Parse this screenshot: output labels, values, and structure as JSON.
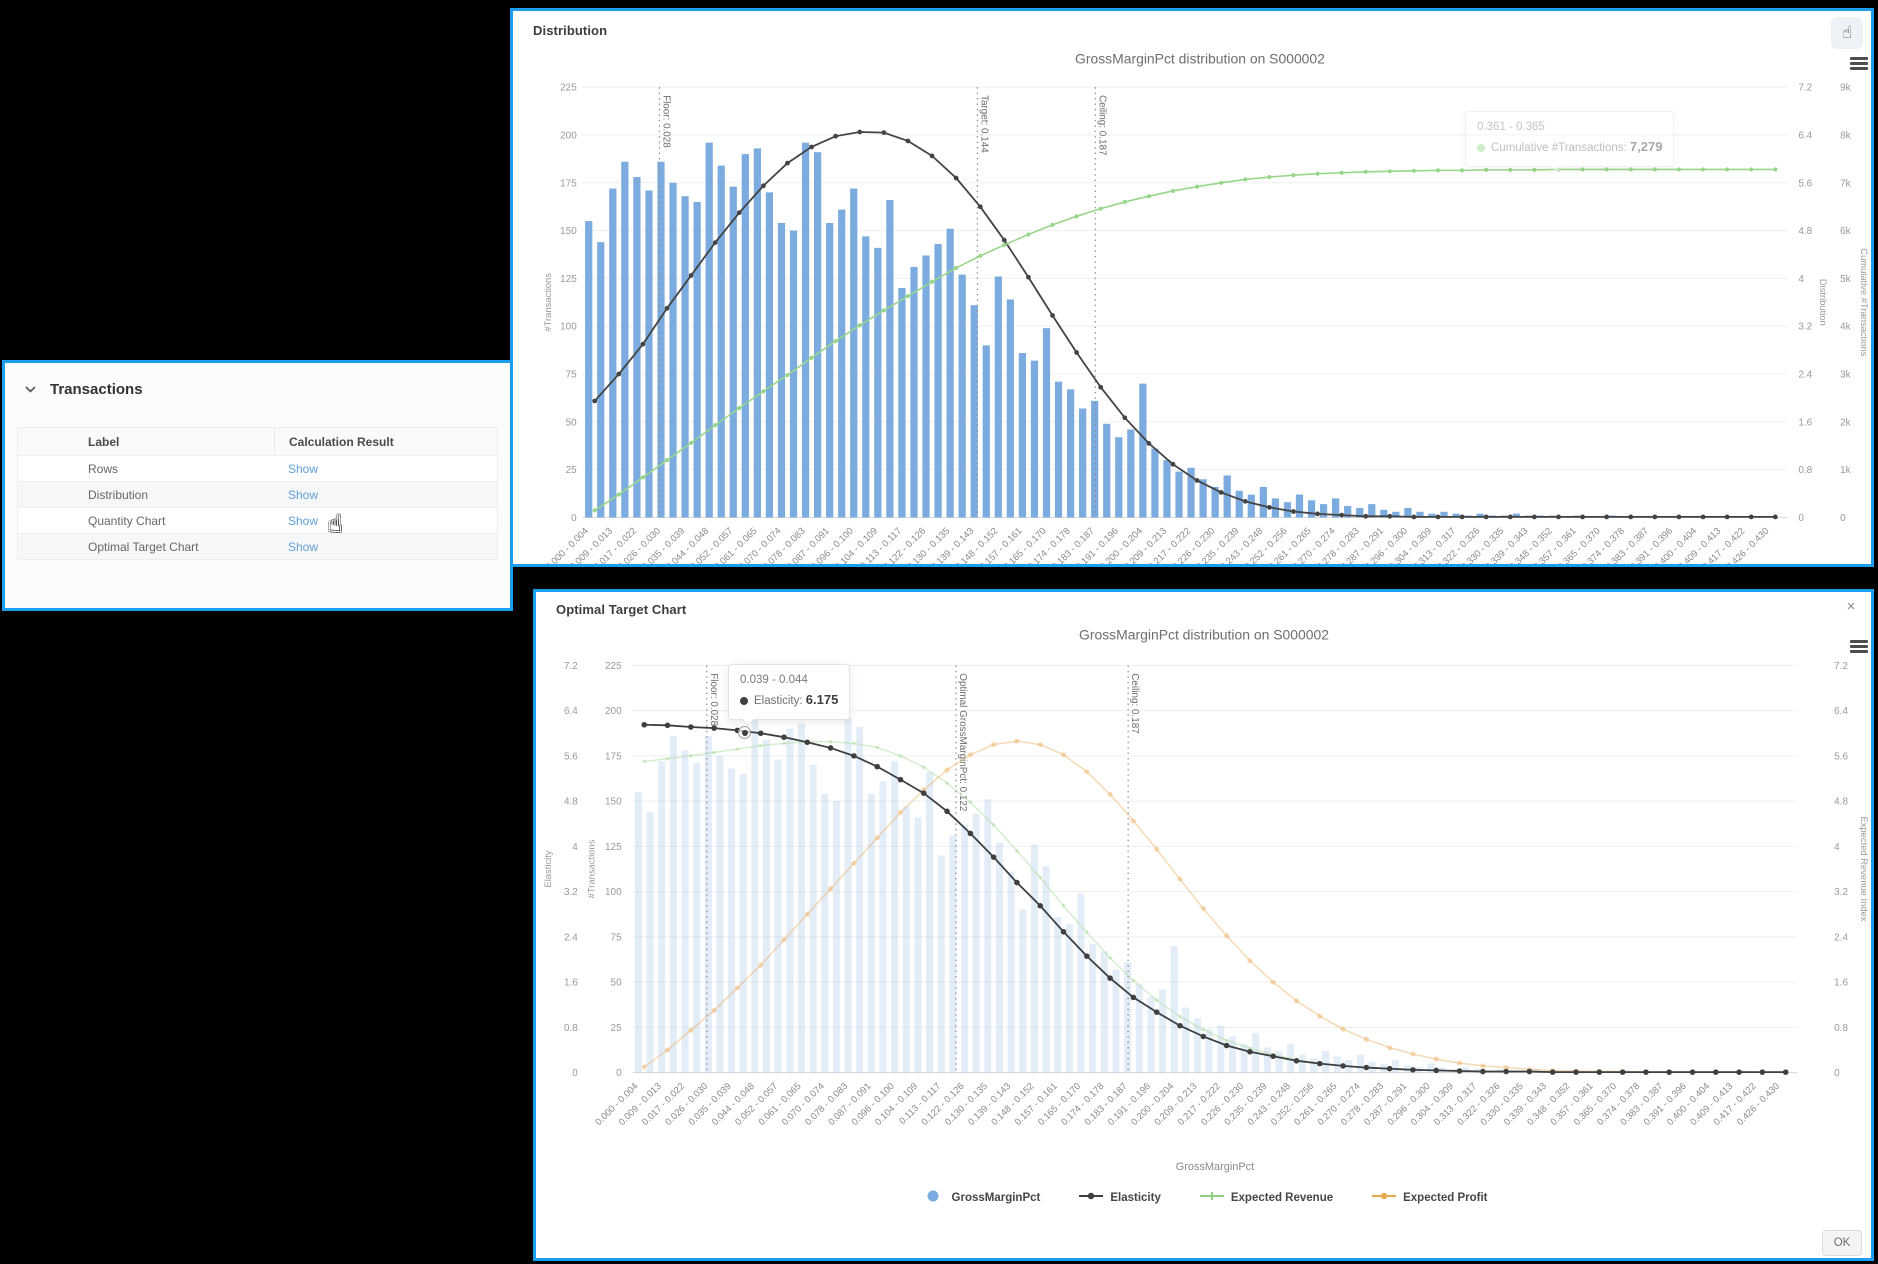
{
  "colors": {
    "panel_border": "#1b9df0",
    "bar_blue": "#7cacdf",
    "line_dark": "#434343",
    "line_green": "#97d689",
    "line_green_faint": "#a8dc9a",
    "line_orange": "#eaaf63",
    "link_blue": "#61a0d7"
  },
  "transactions_panel": {
    "title": "Transactions",
    "table": {
      "headers": [
        "Label",
        "Calculation Result"
      ],
      "rows": [
        {
          "label": "Rows",
          "action": "Show"
        },
        {
          "label": "Distribution",
          "action": "Show"
        },
        {
          "label": "Quantity Chart",
          "action": "Show"
        },
        {
          "label": "Optimal Target Chart",
          "action": "Show"
        }
      ]
    }
  },
  "distribution_panel": {
    "title": "Distribution",
    "tooltip": {
      "range": "0.361 - 0.365",
      "series": "Cumulative #Transactions",
      "value": "7,279"
    }
  },
  "optimal_panel": {
    "title": "Optimal Target Chart",
    "tooltip": {
      "range": "0.039 - 0.044",
      "series": "Elasticity",
      "value": "6.175"
    },
    "ok_label": "OK",
    "legend": [
      {
        "label": "GrossMarginPct",
        "marker": "dot",
        "color": "#7cacdf"
      },
      {
        "label": "Elasticity",
        "marker": "line-dot",
        "color": "#3f3f3f"
      },
      {
        "label": "Expected Revenue",
        "marker": "line-plus",
        "color": "#8fd080"
      },
      {
        "label": "Expected Profit",
        "marker": "line-dot",
        "color": "#e8a84c"
      }
    ]
  },
  "chart_data": [
    {
      "type": "bar",
      "title": "GrossMarginPct distribution on S000002",
      "x_bins": 100,
      "x_max": 0.4395,
      "categories": [
        "0.000 - 0.004",
        "0.009 - 0.013",
        "0.017 - 0.022",
        "0.026 - 0.030",
        "0.035 - 0.039",
        "0.044 - 0.048",
        "0.052 - 0.057",
        "0.061 - 0.065",
        "0.070 - 0.074",
        "0.078 - 0.083",
        "0.087 - 0.091",
        "0.096 - 0.100",
        "0.104 - 0.109",
        "0.113 - 0.117",
        "0.122 - 0.126",
        "0.130 - 0.135",
        "0.139 - 0.143",
        "0.148 - 0.152",
        "0.157 - 0.161",
        "0.165 - 0.170",
        "0.174 - 0.178",
        "0.183 - 0.187",
        "0.191 - 0.196",
        "0.200 - 0.204",
        "0.209 - 0.213",
        "0.217 - 0.222",
        "0.226 - 0.230",
        "0.235 - 0.239",
        "0.243 - 0.248",
        "0.252 - 0.256",
        "0.261 - 0.265",
        "0.270 - 0.274",
        "0.278 - 0.283",
        "0.287 - 0.291",
        "0.296 - 0.300",
        "0.304 - 0.309",
        "0.313 - 0.317",
        "0.322 - 0.326",
        "0.330 - 0.335",
        "0.339 - 0.343",
        "0.348 - 0.352",
        "0.357 - 0.361",
        "0.365 - 0.370",
        "0.374 - 0.378",
        "0.383 - 0.387",
        "0.391 - 0.396",
        "0.400 - 0.404",
        "0.409 - 0.413",
        "0.417 - 0.422",
        "0.426 - 0.430"
      ],
      "bars": {
        "name": "GrossMarginPct",
        "color": "#7cacdf",
        "opacity": 1,
        "max": 225,
        "values": [
          155,
          144,
          172,
          186,
          178,
          171,
          186,
          175,
          168,
          165,
          196,
          184,
          173,
          190,
          193,
          170,
          154,
          150,
          196,
          191,
          154,
          161,
          172,
          147,
          141,
          166,
          120,
          131,
          137,
          143,
          151,
          127,
          111,
          90,
          126,
          114,
          86,
          82,
          99,
          71,
          67,
          57,
          61,
          49,
          42,
          46,
          70,
          36,
          30,
          24,
          26,
          20,
          16,
          22,
          14,
          12,
          16,
          10,
          8,
          12,
          9,
          7,
          10,
          6,
          5,
          7,
          4,
          3,
          5,
          3,
          2,
          3,
          2,
          1,
          2,
          1,
          1,
          2,
          1,
          1,
          1,
          0,
          1,
          0,
          0,
          1,
          0,
          0,
          0,
          0,
          0,
          0,
          0,
          0,
          0,
          0,
          0,
          0,
          0,
          0
        ]
      },
      "left_axes": [
        {
          "title": "#Transactions",
          "ticks": [
            "225",
            "200",
            "175",
            "150",
            "125",
            "100",
            "75",
            "50",
            "25",
            "0"
          ]
        }
      ],
      "right_axes": [
        {
          "title": "Distribution",
          "ticks": [
            "7.2",
            "6.4",
            "5.6",
            "4.8",
            "4",
            "3.2",
            "2.4",
            "1.6",
            "0.8",
            "0"
          ]
        },
        {
          "title": "Cumulative #Transactions",
          "ticks": [
            "9k",
            "8k",
            "7k",
            "6k",
            "5k",
            "4k",
            "3k",
            "2k",
            "1k",
            "0"
          ]
        }
      ],
      "vlines": [
        {
          "label": "Floor: 0.028",
          "x": 0.028
        },
        {
          "label": "Target: 0.144",
          "x": 0.144
        },
        {
          "label": "Ceiling: 0.187",
          "x": 0.187
        }
      ],
      "series": [
        {
          "name": "Distribution",
          "color": "#434343",
          "max": 7.2,
          "lw": 1.8,
          "mr": 2.4,
          "opacity": 1,
          "values": [
            1.95,
            2.4,
            2.9,
            3.5,
            4.05,
            4.6,
            5.1,
            5.55,
            5.93,
            6.2,
            6.38,
            6.45,
            6.44,
            6.3,
            6.05,
            5.68,
            5.2,
            4.64,
            4.02,
            3.38,
            2.76,
            2.18,
            1.67,
            1.24,
            0.89,
            0.62,
            0.42,
            0.27,
            0.17,
            0.1,
            0.06,
            0.04,
            0.02,
            0.02,
            0.01,
            0.01,
            0.01,
            0.01,
            0.01,
            0.01,
            0.01,
            0.01,
            0.01,
            0.01,
            0.01,
            0.01,
            0.01,
            0.01,
            0.01,
            0.01
          ]
        },
        {
          "name": "Cumulative #Transactions",
          "color": "#97d689",
          "max": 9,
          "lw": 1.6,
          "mr": 2.1,
          "opacity": 1,
          "values": [
            0.15,
            0.48,
            0.84,
            1.2,
            1.56,
            1.93,
            2.29,
            2.64,
            2.98,
            3.34,
            3.69,
            4.02,
            4.33,
            4.63,
            4.93,
            5.22,
            5.47,
            5.7,
            5.92,
            6.12,
            6.3,
            6.46,
            6.6,
            6.72,
            6.83,
            6.92,
            7.0,
            7.07,
            7.12,
            7.16,
            7.19,
            7.21,
            7.23,
            7.24,
            7.25,
            7.26,
            7.26,
            7.27,
            7.27,
            7.27,
            7.28,
            7.28,
            7.28,
            7.28,
            7.28,
            7.28,
            7.28,
            7.28,
            7.28,
            7.28
          ]
        }
      ]
    },
    {
      "type": "bar",
      "title": "GrossMarginPct distribution on S000002",
      "xlabel": "GrossMarginPct",
      "x_bins": 100,
      "x_max": 0.4395,
      "categories": [
        "0.000 - 0.004",
        "0.009 - 0.013",
        "0.017 - 0.022",
        "0.026 - 0.030",
        "0.035 - 0.039",
        "0.044 - 0.048",
        "0.052 - 0.057",
        "0.061 - 0.065",
        "0.070 - 0.074",
        "0.078 - 0.083",
        "0.087 - 0.091",
        "0.096 - 0.100",
        "0.104 - 0.109",
        "0.113 - 0.117",
        "0.122 - 0.126",
        "0.130 - 0.135",
        "0.139 - 0.143",
        "0.148 - 0.152",
        "0.157 - 0.161",
        "0.165 - 0.170",
        "0.174 - 0.178",
        "0.183 - 0.187",
        "0.191 - 0.196",
        "0.200 - 0.204",
        "0.209 - 0.213",
        "0.217 - 0.222",
        "0.226 - 0.230",
        "0.235 - 0.239",
        "0.243 - 0.248",
        "0.252 - 0.256",
        "0.261 - 0.265",
        "0.270 - 0.274",
        "0.278 - 0.283",
        "0.287 - 0.291",
        "0.296 - 0.300",
        "0.304 - 0.309",
        "0.313 - 0.317",
        "0.322 - 0.326",
        "0.330 - 0.335",
        "0.339 - 0.343",
        "0.348 - 0.352",
        "0.357 - 0.361",
        "0.365 - 0.370",
        "0.374 - 0.378",
        "0.383 - 0.387",
        "0.391 - 0.396",
        "0.400 - 0.404",
        "0.409 - 0.413",
        "0.417 - 0.422",
        "0.426 - 0.430"
      ],
      "bars": {
        "name": "GrossMarginPct",
        "color": "#7cacdf",
        "opacity": 0.22,
        "max": 225,
        "values": [
          155,
          144,
          172,
          186,
          178,
          171,
          186,
          175,
          168,
          165,
          196,
          184,
          173,
          190,
          193,
          170,
          154,
          150,
          196,
          191,
          154,
          161,
          172,
          147,
          141,
          166,
          120,
          131,
          137,
          143,
          151,
          127,
          111,
          90,
          126,
          114,
          86,
          82,
          99,
          71,
          67,
          57,
          61,
          49,
          42,
          46,
          70,
          36,
          30,
          24,
          26,
          20,
          16,
          22,
          14,
          12,
          16,
          10,
          8,
          12,
          9,
          7,
          10,
          6,
          5,
          7,
          4,
          3,
          5,
          3,
          2,
          3,
          2,
          1,
          2,
          1,
          1,
          2,
          1,
          1,
          1,
          0,
          1,
          0,
          0,
          1,
          0,
          0,
          0,
          0,
          0,
          0,
          0,
          0,
          0,
          0,
          0,
          0,
          0,
          0
        ]
      },
      "left_axes": [
        {
          "title": "Elasticity",
          "ticks": [
            "7.2",
            "6.4",
            "5.6",
            "4.8",
            "4",
            "3.2",
            "2.4",
            "1.6",
            "0.8",
            "0"
          ]
        },
        {
          "title": "#Transactions",
          "ticks": [
            "225",
            "200",
            "175",
            "150",
            "125",
            "100",
            "75",
            "50",
            "25",
            "0"
          ]
        }
      ],
      "right_axes": [
        {
          "title": "Expected Revenue Index",
          "ticks": [
            "7.2",
            "6.4",
            "5.6",
            "4.8",
            "4",
            "3.2",
            "2.4",
            "1.6",
            "0.8",
            "0"
          ]
        }
      ],
      "vlines": [
        {
          "label": "Floor: 0.028",
          "x": 0.028
        },
        {
          "label": "Optimal GrossMarginPct: 0.122",
          "x": 0.122
        },
        {
          "label": "Ceiling: 0.187",
          "x": 0.187
        }
      ],
      "highlight": {
        "bin": 9.5,
        "value": 6.03,
        "max": 7.2
      },
      "series": [
        {
          "name": "Expected Revenue",
          "color": "#a8dc9a",
          "max": 7.2,
          "lw": 1.4,
          "mr": 1.8,
          "opacity": 0.5,
          "values": [
            5.5,
            5.55,
            5.6,
            5.66,
            5.72,
            5.78,
            5.82,
            5.85,
            5.85,
            5.82,
            5.75,
            5.6,
            5.4,
            5.12,
            4.78,
            4.38,
            3.92,
            3.45,
            2.95,
            2.48,
            2.03,
            1.63,
            1.28,
            0.99,
            0.76,
            0.57,
            0.43,
            0.32,
            0.23,
            0.17,
            0.12,
            0.09,
            0.07,
            0.05,
            0.04,
            0.03,
            0.02,
            0.02,
            0.01,
            0.01,
            0.01,
            0.01,
            0.01,
            0.01,
            0.01,
            0.01,
            0.01,
            0.01,
            0.01,
            0.01
          ]
        },
        {
          "name": "Expected Profit",
          "color": "#eaaf63",
          "max": 7.2,
          "lw": 1.6,
          "mr": 2.6,
          "opacity": 0.45,
          "values": [
            0.1,
            0.4,
            0.75,
            1.1,
            1.5,
            1.9,
            2.35,
            2.8,
            3.25,
            3.7,
            4.15,
            4.6,
            5.0,
            5.35,
            5.62,
            5.8,
            5.86,
            5.8,
            5.62,
            5.32,
            4.92,
            4.45,
            3.95,
            3.42,
            2.9,
            2.42,
            1.98,
            1.6,
            1.27,
            1.0,
            0.77,
            0.59,
            0.44,
            0.33,
            0.24,
            0.17,
            0.12,
            0.09,
            0.06,
            0.04,
            0.03,
            0.02,
            0.02,
            0.01,
            0.01,
            0.01,
            0.01,
            0.01,
            0.01,
            0.01
          ]
        },
        {
          "name": "Elasticity",
          "color": "#3f3f3f",
          "max": 7.2,
          "lw": 1.8,
          "mr": 2.8,
          "opacity": 1,
          "values": [
            6.15,
            6.14,
            6.11,
            6.09,
            6.05,
            6.0,
            5.93,
            5.84,
            5.74,
            5.6,
            5.41,
            5.18,
            4.94,
            4.62,
            4.23,
            3.81,
            3.36,
            2.95,
            2.49,
            2.06,
            1.67,
            1.33,
            1.07,
            0.83,
            0.64,
            0.48,
            0.37,
            0.29,
            0.21,
            0.16,
            0.12,
            0.09,
            0.07,
            0.05,
            0.04,
            0.03,
            0.02,
            0.02,
            0.02,
            0.01,
            0.01,
            0.01,
            0.01,
            0.01,
            0.01,
            0.01,
            0.01,
            0.01,
            0.01,
            0.01
          ]
        }
      ]
    }
  ]
}
